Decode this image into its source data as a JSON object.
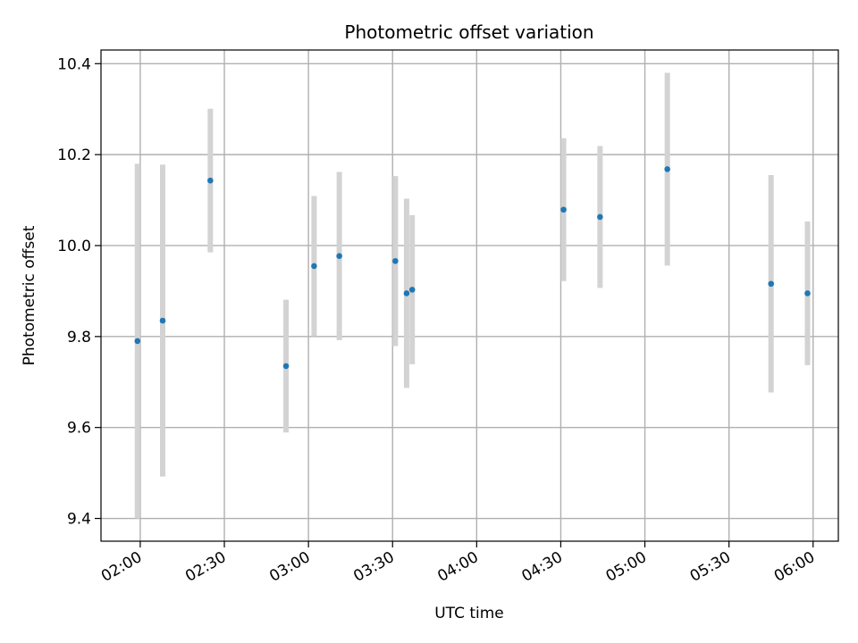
{
  "chart_data": {
    "type": "scatter",
    "title": "Photometric offset variation",
    "xlabel": "UTC time",
    "ylabel": "Photometric offset",
    "x_ticks": [
      "02:00",
      "02:30",
      "03:00",
      "03:30",
      "04:00",
      "04:30",
      "05:00",
      "05:30",
      "06:00"
    ],
    "y_ticks": [
      "9.4",
      "9.6",
      "9.8",
      "10.0",
      "10.2",
      "10.4"
    ],
    "xlim": [
      "01:46",
      "06:09"
    ],
    "ylim": [
      9.35,
      10.43
    ],
    "grid": true,
    "colors": {
      "point": "#1f77b4",
      "errorbar": "#d3d3d3",
      "grid": "#b0b0b0"
    },
    "points": [
      {
        "x": "01:59",
        "y": 9.79,
        "err": 0.39
      },
      {
        "x": "02:08",
        "y": 9.835,
        "err": 0.343
      },
      {
        "x": "02:25",
        "y": 10.143,
        "err": 0.158
      },
      {
        "x": "02:52",
        "y": 9.735,
        "err": 0.146
      },
      {
        "x": "03:02",
        "y": 9.955,
        "err": 0.154
      },
      {
        "x": "03:11",
        "y": 9.977,
        "err": 0.185
      },
      {
        "x": "03:31",
        "y": 9.966,
        "err": 0.187
      },
      {
        "x": "03:35",
        "y": 9.895,
        "err": 0.208
      },
      {
        "x": "03:37",
        "y": 9.903,
        "err": 0.164
      },
      {
        "x": "04:31",
        "y": 10.079,
        "err": 0.157
      },
      {
        "x": "04:44",
        "y": 10.063,
        "err": 0.156
      },
      {
        "x": "05:08",
        "y": 10.168,
        "err": 0.212
      },
      {
        "x": "05:45",
        "y": 9.916,
        "err": 0.239
      },
      {
        "x": "05:58",
        "y": 9.895,
        "err": 0.158
      }
    ]
  }
}
